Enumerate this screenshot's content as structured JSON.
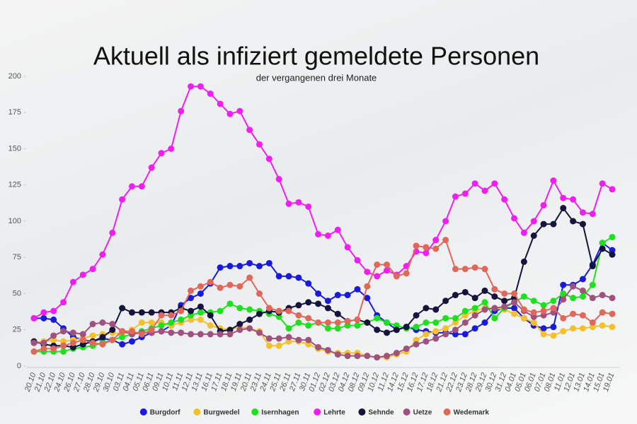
{
  "chart_data": {
    "type": "line",
    "title": "Aktuell als infiziert gemeldete Personen",
    "subtitle": "der vergangenen drei Monate",
    "categories": [
      "20.10",
      "21.10",
      "22.10",
      "24.10",
      "26.10",
      "27.10",
      "28.10",
      "29.10",
      "30.10",
      "03.11",
      "04.11",
      "05.11",
      "06.11",
      "09.11",
      "10.11",
      "11.11",
      "12.11",
      "13.11",
      "16.11",
      "17.11",
      "18.11",
      "19.11",
      "20.11",
      "23.11",
      "24.11",
      "25.11",
      "26.11",
      "27.11",
      "30.11",
      "01.12",
      "02.12",
      "03.12",
      "04.12",
      "08.12",
      "09.12",
      "10.12",
      "11.12",
      "14.12",
      "15.12",
      "16.12",
      "17.12",
      "18.12",
      "21.12",
      "22.12",
      "23.12",
      "28.12",
      "29.12",
      "30.12",
      "31.12",
      "04.01",
      "05.01",
      "06.01",
      "07.01",
      "08.01",
      "11.01",
      "12.01",
      "13.01",
      "14.01",
      "15.01",
      "19.01"
    ],
    "ylim": [
      0,
      200
    ],
    "yticks": [
      0,
      25,
      50,
      75,
      100,
      125,
      150,
      175,
      200
    ],
    "series": [
      {
        "name": "Burgdorf",
        "color": "#1a1adb",
        "values": [
          33,
          33,
          32,
          26,
          20,
          18,
          17,
          19,
          18,
          15,
          17,
          20,
          23,
          24,
          28,
          42,
          47,
          50,
          57,
          68,
          69,
          69,
          71,
          69,
          71,
          62,
          62,
          61,
          57,
          50,
          45,
          49,
          49,
          53,
          47,
          35,
          30,
          25,
          27,
          25,
          24,
          23,
          23,
          22,
          22,
          26,
          30,
          38,
          40,
          40,
          33,
          28,
          26,
          27,
          56,
          56,
          60,
          70,
          85,
          80
        ]
      },
      {
        "name": "Burgwedel",
        "color": "#f5c02e",
        "values": [
          16,
          17,
          18,
          17,
          18,
          19,
          21,
          22,
          23,
          22,
          25,
          30,
          30,
          30,
          28,
          30,
          32,
          32,
          28,
          26,
          25,
          27,
          26,
          24,
          14,
          14,
          17,
          17,
          15,
          12,
          10,
          9,
          9,
          9,
          7,
          6,
          6,
          8,
          10,
          18,
          22,
          24,
          26,
          30,
          35,
          38,
          40,
          40,
          39,
          36,
          33,
          30,
          22,
          21,
          24,
          26,
          26,
          27,
          28,
          27
        ]
      },
      {
        "name": "Isernhagen",
        "color": "#1fe01f",
        "values": [
          10,
          10,
          10,
          10,
          12,
          13,
          14,
          16,
          18,
          20,
          22,
          24,
          26,
          28,
          30,
          32,
          35,
          37,
          37,
          38,
          43,
          40,
          39,
          38,
          36,
          34,
          26,
          30,
          28,
          30,
          26,
          26,
          28,
          28,
          30,
          33,
          30,
          28,
          26,
          27,
          30,
          30,
          33,
          33,
          38,
          40,
          44,
          33,
          40,
          44,
          48,
          45,
          42,
          45,
          50,
          47,
          48,
          56,
          85,
          89
        ]
      },
      {
        "name": "Lehrte",
        "color": "#f01ef0",
        "values": [
          33,
          37,
          38,
          44,
          58,
          63,
          67,
          77,
          92,
          115,
          124,
          124,
          137,
          147,
          150,
          176,
          193,
          193,
          188,
          181,
          174,
          176,
          163,
          153,
          143,
          129,
          112,
          113,
          110,
          91,
          90,
          94,
          82,
          73,
          65,
          62,
          66,
          63,
          69,
          79,
          78,
          87,
          100,
          117,
          119,
          126,
          121,
          126,
          115,
          102,
          92,
          100,
          111,
          128,
          116,
          115,
          106,
          105,
          126,
          122
        ]
      },
      {
        "name": "Sehnde",
        "color": "#14143c",
        "values": [
          17,
          15,
          14,
          14,
          13,
          15,
          17,
          20,
          25,
          40,
          37,
          37,
          37,
          37,
          37,
          40,
          38,
          41,
          35,
          24,
          25,
          29,
          32,
          36,
          38,
          37,
          40,
          42,
          44,
          43,
          40,
          36,
          31,
          32,
          30,
          25,
          23,
          25,
          27,
          35,
          40,
          39,
          45,
          49,
          51,
          47,
          52,
          48,
          45,
          47,
          72,
          90,
          98,
          98,
          109,
          100,
          98,
          69,
          81,
          77
        ]
      },
      {
        "name": "Uetze",
        "color": "#a0527f",
        "values": [
          16,
          16,
          21,
          24,
          23,
          22,
          29,
          30,
          29,
          24,
          22,
          23,
          23,
          24,
          23,
          23,
          22,
          22,
          22,
          22,
          22,
          25,
          26,
          23,
          19,
          19,
          20,
          18,
          18,
          13,
          11,
          8,
          7,
          7,
          7,
          6,
          7,
          9,
          12,
          15,
          17,
          19,
          22,
          25,
          30,
          35,
          39,
          40,
          41,
          44,
          38,
          34,
          35,
          37,
          46,
          55,
          52,
          47,
          49,
          47
        ]
      },
      {
        "name": "Wedemark",
        "color": "#e0685a",
        "values": [
          10,
          12,
          12,
          14,
          16,
          18,
          16,
          15,
          18,
          24,
          24,
          22,
          25,
          35,
          35,
          38,
          52,
          55,
          58,
          54,
          56,
          55,
          61,
          50,
          40,
          38,
          38,
          35,
          33,
          30,
          30,
          30,
          31,
          32,
          55,
          70,
          70,
          62,
          64,
          83,
          82,
          81,
          87,
          67,
          67,
          68,
          67,
          53,
          50,
          50,
          39,
          37,
          38,
          40,
          33,
          36,
          35,
          30,
          37,
          36
        ]
      }
    ]
  }
}
